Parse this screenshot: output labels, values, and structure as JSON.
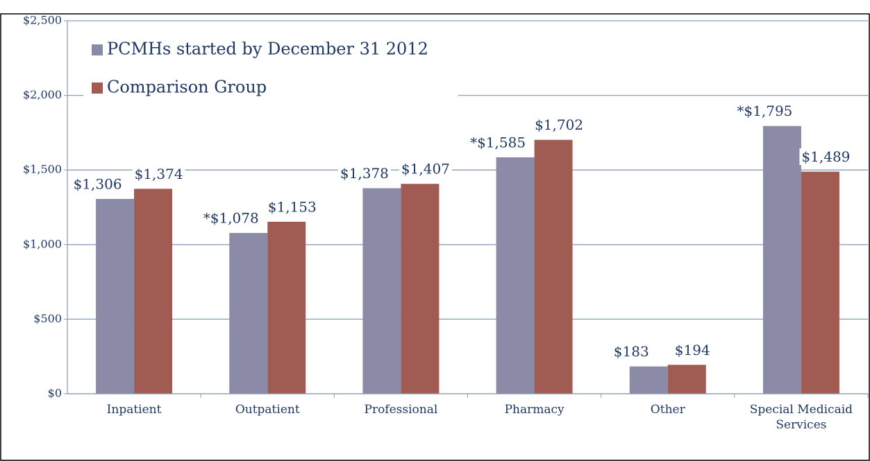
{
  "chart_data": {
    "type": "bar",
    "categories": [
      "Inpatient",
      "Outpatient",
      "Professional",
      "Pharmacy",
      "Other",
      "Special Medicaid Services"
    ],
    "series": [
      {
        "name": "PCMHs started by December 31 2012",
        "color": "#8b8ba8",
        "values": [
          1306,
          1078,
          1378,
          1585,
          183,
          1795
        ],
        "value_labels": [
          "$1,306",
          "*$1,078",
          "$1,378",
          "*$1,585",
          "$183",
          "*$1,795"
        ]
      },
      {
        "name": "Comparison Group",
        "color": "#a05c52",
        "values": [
          1374,
          1153,
          1407,
          1702,
          194,
          1489
        ],
        "value_labels": [
          "$1,374",
          "$1,153",
          "$1,407",
          "$1,702",
          "$194",
          "$1,489"
        ]
      }
    ],
    "ylim": [
      0,
      2500
    ],
    "yticks": [
      {
        "value": 0,
        "label": "$0"
      },
      {
        "value": 500,
        "label": "$500"
      },
      {
        "value": 1000,
        "label": "$1,000"
      },
      {
        "value": 1500,
        "label": "$1,500"
      },
      {
        "value": 2000,
        "label": "$2,000"
      },
      {
        "value": 2500,
        "label": "$2,500"
      }
    ],
    "grid": true,
    "legend": "top-left"
  }
}
